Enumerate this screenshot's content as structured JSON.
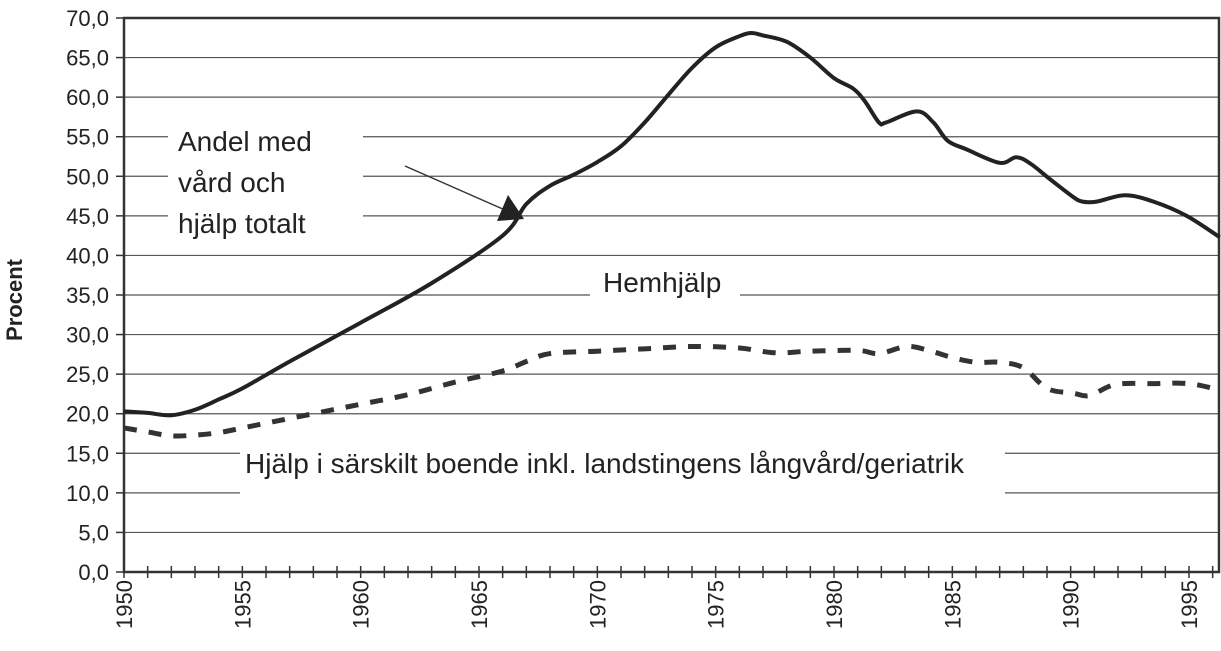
{
  "chart_data": {
    "type": "line",
    "title": "",
    "xlabel": "",
    "ylabel": "Procent",
    "xlim": [
      1950,
      1996.3
    ],
    "ylim": [
      0,
      70
    ],
    "grid": true,
    "x_ticks": [
      "1950",
      "1955",
      "1960",
      "1965",
      "1970",
      "1975",
      "1980",
      "1985",
      "1990",
      "1995"
    ],
    "y_ticks": [
      "0,0",
      "5,0",
      "10,0",
      "15,0",
      "20,0",
      "25,0",
      "30,0",
      "35,0",
      "40,0",
      "45,0",
      "50,0",
      "55,0",
      "60,0",
      "65,0",
      "70,0"
    ],
    "series": [
      {
        "name": "Andel med vård och hjälp totalt",
        "style": "solid",
        "color": "#222222",
        "x": [
          1950,
          1951,
          1952,
          1953,
          1954,
          1955,
          1957,
          1960,
          1963,
          1966,
          1967,
          1968,
          1969,
          1970,
          1971,
          1972,
          1973,
          1974,
          1975,
          1976,
          1976.5,
          1977,
          1978,
          1979,
          1980,
          1980.8,
          1981.3,
          1981.9,
          1982.2,
          1983.5,
          1984.2,
          1984.8,
          1985.6,
          1987,
          1987.7,
          1988.3,
          1989.1,
          1990.1,
          1990.5,
          1991.1,
          1992.3,
          1993.5,
          1994.9,
          1996.3
        ],
        "y": [
          20.3,
          20.1,
          19.8,
          20.5,
          21.8,
          23.2,
          26.6,
          31.5,
          36.5,
          42.5,
          46.5,
          48.8,
          50.2,
          51.8,
          53.8,
          56.8,
          60.3,
          63.7,
          66.3,
          67.7,
          68.1,
          67.8,
          67.0,
          65.0,
          62.4,
          61.1,
          59.5,
          56.8,
          56.8,
          58.2,
          56.8,
          54.5,
          53.4,
          51.7,
          52.4,
          51.6,
          49.7,
          47.4,
          46.8,
          46.8,
          47.6,
          46.8,
          45.0,
          42.3
        ]
      },
      {
        "name": "Hemhjälp",
        "style": "none",
        "color": "#222222",
        "x": [],
        "y": []
      },
      {
        "name": "Hjälp i särskilt boende inkl. landstingens långvård/geriatrik",
        "style": "dashed",
        "color": "#333333",
        "x": [
          1950,
          1951,
          1952,
          1953,
          1954,
          1955,
          1956,
          1957,
          1958,
          1959,
          1960,
          1962,
          1964,
          1966,
          1967,
          1968,
          1970,
          1972,
          1974,
          1976,
          1977.5,
          1979,
          1981,
          1981.9,
          1983.1,
          1984.1,
          1985,
          1986,
          1987,
          1988,
          1989,
          1990.1,
          1990.8,
          1991.9,
          1993.5,
          1995,
          1996.3
        ],
        "y": [
          18.2,
          17.7,
          17.2,
          17.3,
          17.6,
          18.2,
          18.8,
          19.4,
          20.0,
          20.6,
          21.2,
          22.4,
          24.0,
          25.4,
          26.6,
          27.6,
          27.9,
          28.2,
          28.5,
          28.3,
          27.7,
          27.9,
          28.0,
          27.6,
          28.5,
          27.9,
          27.1,
          26.5,
          26.5,
          25.8,
          23.2,
          22.6,
          22.3,
          23.7,
          23.8,
          23.8,
          23.0
        ]
      }
    ],
    "annotations": {
      "total_lines": [
        "Andel med",
        "vård och",
        "hjälp totalt"
      ],
      "hemhjalp": "Hemhjälp",
      "sarskilt_boende": "Hjälp i särskilt boende inkl. landstingens långvård/geriatrik"
    },
    "legend": "none"
  }
}
